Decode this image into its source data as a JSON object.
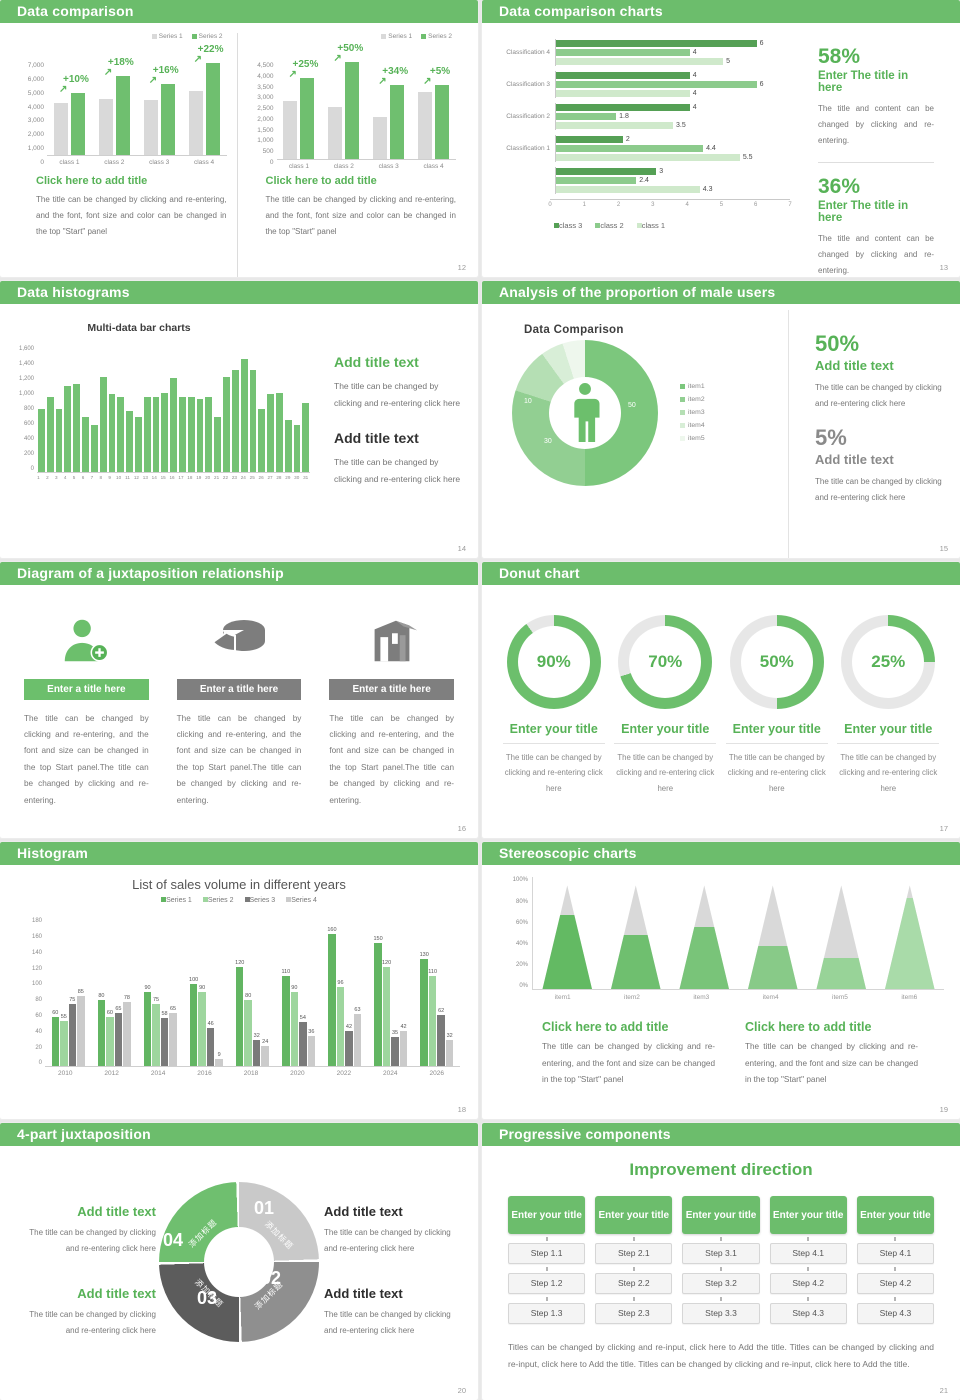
{
  "colors": {
    "header_green": "#6cbd6c",
    "accent_green": "#57b257",
    "bar_green": "#6fbf6f",
    "bar_gray": "#d9d9d9",
    "series18": [
      "#62b562",
      "#9ed69e",
      "#7a7a7a",
      "#cbcbcb"
    ],
    "hbar13": [
      "#55a055",
      "#8ccb8c",
      "#cfe9cb"
    ],
    "donut15": [
      "#7cc77d",
      "#92cf92",
      "#b5dfb4",
      "#d8eed7",
      "#eef7ed"
    ],
    "ring17_green": "#6cbf6c",
    "ring17_track": "#e7e7e7",
    "ring20": [
      "#c9c9c9",
      "#8f8f8f",
      "#5c5c5c",
      "#6fbf6f"
    ],
    "pyramid_greens": [
      "#63ba63",
      "#6fbf6f",
      "#79c479",
      "#88ca88",
      "#98d398",
      "#a9dba9"
    ],
    "pyramid_gray": "#d9d9d9",
    "title_bar_gray": "#7f7f7f"
  },
  "slides": [
    {
      "page": "12",
      "title": "Data comparison",
      "legend": [
        "Series 1",
        "Series 2"
      ],
      "charts": [
        {
          "type": "bar",
          "yticks": [
            "7,000",
            "6,000",
            "5,000",
            "4,000",
            "3,000",
            "2,000",
            "1,000",
            "0"
          ],
          "ymax": 7000,
          "categories": [
            "class 1",
            "class 2",
            "class 3",
            "class 4"
          ],
          "series1": [
            3500,
            3800,
            3700,
            4300
          ],
          "series2": [
            4200,
            5300,
            4800,
            6200
          ],
          "labels": [
            "+10%",
            "+18%",
            "+16%",
            "+22%"
          ],
          "heading": "Click here to add title",
          "body": "The title can be changed by clicking and re-entering, and the font, font size and color can be changed in the top \"Start\" panel"
        },
        {
          "type": "bar",
          "yticks": [
            "4,500",
            "4,000",
            "3,500",
            "3,000",
            "2,500",
            "2,000",
            "1,500",
            "1,000",
            "500",
            "0"
          ],
          "ymax": 4500,
          "categories": [
            "class 1",
            "class 2",
            "class 3",
            "class 4"
          ],
          "series1": [
            2500,
            2250,
            1800,
            2900
          ],
          "series2": [
            3500,
            4200,
            3200,
            3200
          ],
          "labels": [
            "+25%",
            "+50%",
            "+34%",
            "+5%"
          ],
          "heading": "Click here to add title",
          "body": "The title can be changed by clicking and re-entering, and the font, font size and color can be changed in the top \"Start\" panel"
        }
      ]
    },
    {
      "page": "13",
      "title": "Data comparison charts",
      "chart": {
        "type": "bar",
        "groups": [
          {
            "label": "Classification 4",
            "values": [
              6,
              4,
              5
            ]
          },
          {
            "label": "Classification 3",
            "values": [
              4,
              6,
              4
            ]
          },
          {
            "label": "Classification 2",
            "values": [
              4,
              1.8,
              3.5
            ]
          },
          {
            "label": "Classification 1",
            "values": [
              2,
              4.4,
              5.5
            ]
          },
          {
            "label": "",
            "values": [
              3,
              2.4,
              4.3
            ]
          }
        ],
        "xticks": [
          "0",
          "1",
          "2",
          "3",
          "4",
          "5",
          "6",
          "7"
        ],
        "xmax": 7,
        "legend": [
          "class 3",
          "class 2",
          "class 1"
        ]
      },
      "stats": [
        {
          "pct": "58%",
          "heading": "Enter The title in here",
          "body": "The title and content can be changed by clicking and re-entering."
        },
        {
          "pct": "36%",
          "heading": "Enter The title in here",
          "body": "The title and content can be changed by clicking and re-entering."
        }
      ]
    },
    {
      "page": "14",
      "title": "Data histograms",
      "chart_title": "Multi-data bar charts",
      "chart": {
        "type": "bar",
        "yticks": [
          "1,600",
          "1,400",
          "1,200",
          "1,000",
          "800",
          "600",
          "400",
          "200",
          "0"
        ],
        "ymax": 1600,
        "xlabels": [
          "1",
          "2",
          "3",
          "4",
          "5",
          "6",
          "7",
          "8",
          "9",
          "10",
          "11",
          "12",
          "13",
          "14",
          "15",
          "16",
          "17",
          "18",
          "19",
          "20",
          "21",
          "22",
          "23",
          "24",
          "25",
          "26",
          "27",
          "28",
          "29",
          "30",
          "31"
        ],
        "values": [
          800,
          950,
          800,
          1090,
          1120,
          700,
          600,
          1200,
          990,
          950,
          780,
          700,
          950,
          950,
          1000,
          1190,
          950,
          950,
          930,
          950,
          700,
          1200,
          1300,
          1430,
          1300,
          800,
          990,
          1000,
          660,
          600,
          870
        ]
      },
      "blocks": [
        {
          "heading": "Add title text",
          "body": "The title can be changed by clicking and re-entering click here"
        },
        {
          "heading": "Add title text",
          "body": "The title can be changed by clicking and re-entering click here"
        }
      ]
    },
    {
      "page": "15",
      "title": "Analysis of the proportion of male users",
      "chart_title": "Data Comparison",
      "donut": {
        "type": "pie",
        "values": [
          50,
          30,
          10,
          5,
          5
        ],
        "shown_labels": [
          "50",
          "30",
          "10"
        ],
        "legend": [
          "item1",
          "item2",
          "item3",
          "item4",
          "item5"
        ]
      },
      "stats": [
        {
          "pct": "50%",
          "heading": "Add title text",
          "body": "The title can be changed by clicking and re-entering click here"
        },
        {
          "pct": "5%",
          "heading": "Add title text",
          "body": "The title can be changed by clicking and re-entering click here"
        }
      ]
    },
    {
      "page": "16",
      "title": "Diagram of a juxtaposition relationship",
      "items": [
        {
          "icon": "person-add-icon",
          "title": "Enter a title here",
          "body": "The title can be changed by clicking and re-entering, and the font and size can be changed in the top Start panel.The title can be changed by clicking and re-entering."
        },
        {
          "icon": "pie-3d-icon",
          "title": "Enter a title here",
          "body": "The title can be changed by clicking and re-entering, and the font and size can be changed in the top Start panel.The title can be changed by clicking and re-entering."
        },
        {
          "icon": "building-icon",
          "title": "Enter a title here",
          "body": "The title can be changed by clicking and re-entering, and the font and size can be changed in the top Start panel.The title can be changed by clicking and re-entering."
        }
      ]
    },
    {
      "page": "17",
      "title": "Donut chart",
      "donuts": [
        {
          "pct": 90,
          "label": "90%"
        },
        {
          "pct": 70,
          "label": "70%"
        },
        {
          "pct": 50,
          "label": "50%"
        },
        {
          "pct": 25,
          "label": "25%"
        }
      ],
      "item_heading": "Enter your title",
      "item_body": "The title can be changed by clicking and re-entering click here"
    },
    {
      "page": "18",
      "title": "Histogram",
      "chart": {
        "type": "bar",
        "title": "List of sales volume in different years",
        "legend": [
          "Series 1",
          "Series 2",
          "Series 3",
          "Series 4"
        ],
        "categories": [
          "2010",
          "2012",
          "2014",
          "2016",
          "2018",
          "2020",
          "2022",
          "2024",
          "2026"
        ],
        "series": [
          {
            "name": "Series 1",
            "values": [
              60,
              80,
              90,
              100,
              120,
              110,
              160,
              150,
              130
            ]
          },
          {
            "name": "Series 2",
            "values": [
              55,
              60,
              75,
              90,
              80,
              90,
              96,
              120,
              110
            ]
          },
          {
            "name": "Series 3",
            "values": [
              75,
              65,
              58,
              46,
              32,
              54,
              42,
              35,
              62
            ]
          },
          {
            "name": "Series 4",
            "values": [
              85,
              78,
              65,
              9,
              24,
              36,
              63,
              42,
              32
            ]
          }
        ],
        "yticks": [
          "180",
          "160",
          "140",
          "120",
          "100",
          "80",
          "60",
          "40",
          "20",
          "0"
        ],
        "ymax": 180
      }
    },
    {
      "page": "19",
      "title": "Stereoscopic charts",
      "chart": {
        "type": "bar",
        "yticks": [
          "100%",
          "80%",
          "60%",
          "40%",
          "20%",
          "0%"
        ],
        "pyramids": [
          {
            "label": "item1",
            "pct": 72
          },
          {
            "label": "item2",
            "pct": 52
          },
          {
            "label": "item3",
            "pct": 60
          },
          {
            "label": "item4",
            "pct": 42
          },
          {
            "label": "item5",
            "pct": 30
          },
          {
            "label": "item6",
            "pct": 88
          }
        ]
      },
      "blocks": [
        {
          "heading": "Click here to add title",
          "body": "The title can be changed by clicking and re-entering, and the font and size can be changed in the top \"Start\" panel"
        },
        {
          "heading": "Click here to add title",
          "body": "The title can be changed by clicking and re-entering, and the font and size can be changed in the top \"Start\" panel"
        }
      ]
    },
    {
      "page": "20",
      "title": "4-part juxtaposition",
      "ring": [
        {
          "num": "01",
          "zh": "添加标题"
        },
        {
          "num": "02",
          "zh": "添加标题"
        },
        {
          "num": "03",
          "zh": "添加标题"
        },
        {
          "num": "04",
          "zh": "添加标题"
        }
      ],
      "blocks": [
        {
          "heading": "Add title text",
          "body": "The title can be changed by clicking and re-entering click here",
          "style": "green"
        },
        {
          "heading": "Add title text",
          "body": "The title can be changed by clicking and re-entering click here",
          "style": "green"
        },
        {
          "heading": "Add title text",
          "body": "The title can be changed by clicking and re-entering click here",
          "style": "dark"
        },
        {
          "heading": "Add title text",
          "body": "The title can be changed by clicking and re-entering click here",
          "style": "dark"
        }
      ]
    },
    {
      "page": "21",
      "title": "Progressive components",
      "heading": "Improvement direction",
      "col_header": "Enter your title",
      "columns": [
        [
          "Step 1.1",
          "Step 1.2",
          "Step 1.3"
        ],
        [
          "Step 2.1",
          "Step 2.2",
          "Step 2.3"
        ],
        [
          "Step 3.1",
          "Step 3.2",
          "Step 3.3"
        ],
        [
          "Step 4.1",
          "Step 4.2",
          "Step 4.3"
        ],
        [
          "Step 4.1",
          "Step 4.2",
          "Step 4.3"
        ]
      ],
      "footer": "Titles can be changed by clicking and re-input, click here to Add the title. Titles can be changed by clicking and re-input, click here to Add the title. Titles can be changed by clicking and re-input, click here to Add the title."
    }
  ]
}
